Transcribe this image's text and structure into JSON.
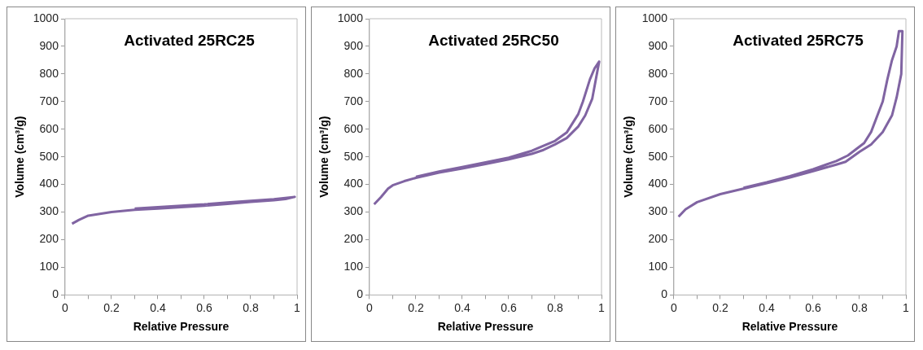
{
  "chart_data": [
    {
      "type": "line",
      "title": "Activated 25RC25",
      "xlabel": "Relative Pressure",
      "ylabel": "Volume (cm³/g)",
      "xlim": [
        0,
        1
      ],
      "ylim": [
        0,
        1000
      ],
      "xticks": [
        0,
        {
          "value": 0.1,
          "label": null
        },
        0.2,
        {
          "value": 0.3,
          "label": null
        },
        0.4,
        {
          "value": 0.5,
          "label": null
        },
        0.6,
        {
          "value": 0.7,
          "label": null
        },
        0.8,
        {
          "value": 0.9,
          "label": null
        },
        1
      ],
      "yticks": [
        0,
        100,
        200,
        300,
        400,
        500,
        600,
        700,
        800,
        900,
        1000
      ],
      "grid": false,
      "legend": false,
      "marker": "none",
      "line_style": "solid",
      "series": [
        {
          "color": "#8064a2",
          "x": [
            0.03,
            0.06,
            0.1,
            0.2,
            0.3,
            0.4,
            0.5,
            0.6,
            0.7,
            0.8,
            0.9,
            0.95,
            0.99,
            0.9,
            0.8,
            0.7,
            0.6,
            0.5,
            0.4,
            0.3
          ],
          "values": [
            258,
            272,
            287,
            300,
            308,
            313,
            318,
            323,
            330,
            337,
            343,
            347,
            355,
            347,
            341,
            335,
            328,
            323,
            318,
            313
          ]
        }
      ]
    },
    {
      "type": "line",
      "title": "Activated 25RC50",
      "xlabel": "Relative Pressure",
      "ylabel": "Volume (cm³/g)",
      "xlim": [
        0,
        1
      ],
      "ylim": [
        0,
        1000
      ],
      "xticks": [
        0,
        {
          "value": 0.1,
          "label": null
        },
        0.2,
        {
          "value": 0.3,
          "label": null
        },
        0.4,
        {
          "value": 0.5,
          "label": null
        },
        0.6,
        {
          "value": 0.7,
          "label": null
        },
        0.8,
        {
          "value": 0.9,
          "label": null
        },
        1
      ],
      "yticks": [
        0,
        100,
        200,
        300,
        400,
        500,
        600,
        700,
        800,
        900,
        1000
      ],
      "grid": false,
      "legend": false,
      "marker": "none",
      "line_style": "solid",
      "series": [
        {
          "color": "#8064a2",
          "x": [
            0.02,
            0.05,
            0.08,
            0.1,
            0.15,
            0.2,
            0.3,
            0.4,
            0.5,
            0.6,
            0.7,
            0.75,
            0.8,
            0.85,
            0.9,
            0.93,
            0.96,
            0.99,
            0.97,
            0.95,
            0.92,
            0.9,
            0.85,
            0.8,
            0.7,
            0.6,
            0.5,
            0.4,
            0.3,
            0.2
          ],
          "values": [
            328,
            355,
            385,
            397,
            412,
            424,
            443,
            458,
            474,
            491,
            511,
            525,
            545,
            568,
            610,
            650,
            710,
            845,
            820,
            780,
            700,
            655,
            588,
            558,
            522,
            497,
            480,
            463,
            447,
            428
          ]
        }
      ]
    },
    {
      "type": "line",
      "title": "Activated 25RC75",
      "xlabel": "Relative Pressure",
      "ylabel": "Volume (cm³/g)",
      "xlim": [
        0,
        1
      ],
      "ylim": [
        0,
        1000
      ],
      "xticks": [
        0,
        {
          "value": 0.1,
          "label": null
        },
        0.2,
        {
          "value": 0.3,
          "label": null
        },
        0.4,
        {
          "value": 0.5,
          "label": null
        },
        0.6,
        {
          "value": 0.7,
          "label": null
        },
        0.8,
        {
          "value": 0.9,
          "label": null
        },
        1
      ],
      "yticks": [
        0,
        100,
        200,
        300,
        400,
        500,
        600,
        700,
        800,
        900,
        1000
      ],
      "grid": false,
      "legend": false,
      "marker": "none",
      "line_style": "solid",
      "series": [
        {
          "color": "#8064a2",
          "x": [
            0.02,
            0.05,
            0.1,
            0.2,
            0.3,
            0.4,
            0.5,
            0.6,
            0.7,
            0.74,
            0.8,
            0.85,
            0.9,
            0.94,
            0.96,
            0.98,
            0.985,
            0.97,
            0.96,
            0.94,
            0.92,
            0.9,
            0.85,
            0.82,
            0.75,
            0.7,
            0.6,
            0.5,
            0.4,
            0.3
          ],
          "values": [
            283,
            310,
            336,
            365,
            385,
            405,
            425,
            448,
            472,
            482,
            518,
            545,
            590,
            650,
            715,
            800,
            955,
            955,
            900,
            850,
            780,
            700,
            590,
            550,
            505,
            485,
            455,
            430,
            408,
            388
          ]
        }
      ]
    }
  ]
}
